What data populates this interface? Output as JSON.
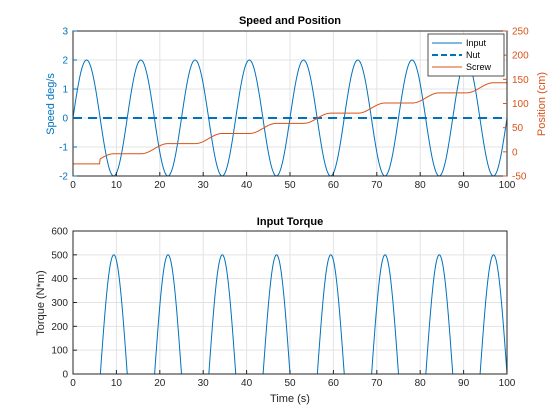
{
  "colors": {
    "input": "#0072bd",
    "nut": "#0072bd",
    "screw": "#d95319",
    "left_axis": "#0072bd",
    "right_axis": "#d95319",
    "axis": "#262626"
  },
  "chart_data": [
    {
      "type": "line",
      "title": "Speed and Position",
      "xlabel": "",
      "ylabel": "Speed deg/s",
      "y2label": "Position (cm)",
      "xlim": [
        0,
        100
      ],
      "ylim": [
        -2,
        3
      ],
      "y2lim": [
        -50,
        250
      ],
      "xticks": [
        0,
        10,
        20,
        30,
        40,
        50,
        60,
        70,
        80,
        90,
        100
      ],
      "yticks": [
        -2,
        -1,
        0,
        1,
        2,
        3
      ],
      "y2ticks": [
        -50,
        0,
        50,
        100,
        150,
        200,
        250
      ],
      "grid": true,
      "legend": "top-right",
      "series": [
        {
          "name": "Input",
          "axis": "left",
          "style": "solid",
          "description_of_shape": "sinusoid",
          "amplitude": 2,
          "period": 12.5,
          "phase_start": 0,
          "x_range": [
            0,
            100
          ]
        },
        {
          "name": "Nut",
          "axis": "left",
          "style": "dashed",
          "x": [
            0,
            100
          ],
          "y": [
            0,
            0
          ]
        },
        {
          "name": "Screw",
          "axis": "right",
          "style": "solid",
          "x": [
            0,
            6.25,
            12.5,
            18.75,
            25,
            31.25,
            37.5,
            43.75,
            50,
            56.25,
            62.5,
            68.75,
            75,
            81.25,
            87.5,
            93.75,
            100
          ],
          "y": [
            0,
            0,
            20,
            20,
            40,
            40,
            60,
            60,
            80,
            80,
            100,
            100,
            120,
            120,
            140,
            140,
            160
          ],
          "step_offset": -25
        }
      ]
    },
    {
      "type": "line",
      "title": "Input Torque",
      "xlabel": "Time (s)",
      "ylabel": "Torque (N*m)",
      "xlim": [
        0,
        100
      ],
      "ylim": [
        0,
        600
      ],
      "xticks": [
        0,
        10,
        20,
        30,
        40,
        50,
        60,
        70,
        80,
        90,
        100
      ],
      "yticks": [
        0,
        100,
        200,
        300,
        400,
        500,
        600
      ],
      "grid": true,
      "series": [
        {
          "axis": "left",
          "style": "solid",
          "description_of_shape": "rectified positive half-sine pulses",
          "peak": 500,
          "period": 12.5,
          "pulse_centers": [
            9.4,
            21.9,
            34.4,
            46.9,
            59.4,
            71.9,
            84.4,
            96.9
          ],
          "pulse_halfwidth": 3.1
        }
      ]
    }
  ]
}
